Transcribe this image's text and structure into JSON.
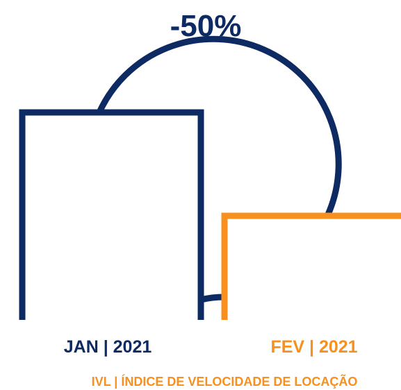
{
  "chart_data": {
    "type": "bar",
    "categories": [
      "JAN | 2021",
      "FEV | 2021"
    ],
    "values": [
      100,
      50
    ],
    "change_label": "-50%",
    "subtitle": "IVL | ÍNDICE DE VELOCIDADE DE LOCAÇÃO",
    "xlabel": "",
    "ylabel": "",
    "grid": false,
    "colors": [
      "#0d2a63",
      "#f7901e"
    ],
    "subtitle_color": "#f7901e",
    "connector_color": "#0d2a63"
  }
}
